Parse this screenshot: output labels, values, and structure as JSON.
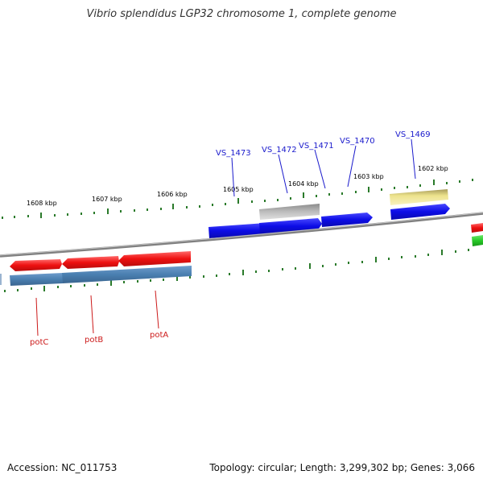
{
  "title": "Vibrio splendidus LGP32 chromosome 1, complete genome",
  "footer": {
    "accession": "Accession: NC_011753",
    "summary": "Topology: circular; Length: 3,299,302 bp; Genes: 3,066"
  },
  "scale_labels": [
    "1608 kbp",
    "1607 kbp",
    "1606 kbp",
    "1605 kbp",
    "1604 kbp",
    "1603 kbp",
    "1602 kbp"
  ],
  "upper_gene_labels": [
    "VS_1473",
    "VS_1472",
    "VS_1471",
    "VS_1470",
    "VS_1469"
  ],
  "lower_gene_labels": [
    "potC",
    "potB",
    "potA"
  ],
  "colors": {
    "upper_label": "#1a1acc",
    "lower_label": "#cc1a1a",
    "blue_gene": "#1010e8",
    "red_gene": "#ee1010",
    "steel_gene": "#4a7fb0",
    "gray_gene": "#a8a8a8",
    "yellow_gene": "#ece28c",
    "green_gene": "#28c828",
    "backbone": "#808080",
    "tick": "#2a7a2a"
  }
}
